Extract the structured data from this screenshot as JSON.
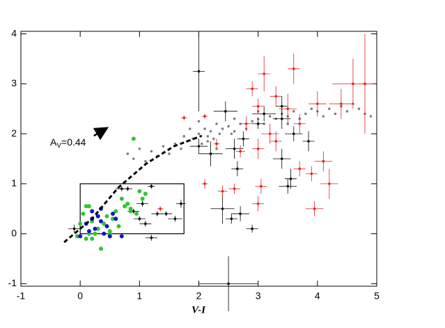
{
  "chart_data": {
    "type": "scatter",
    "x_label": "V-I",
    "xlim": [
      -1,
      5
    ],
    "ylim": [
      -1.05,
      4.05
    ],
    "xticks": [
      -1,
      0,
      1,
      2,
      3,
      4,
      5
    ],
    "yticks": [
      -1,
      0,
      1,
      2,
      3,
      4
    ],
    "annotation": {
      "text": "A",
      "sub": "V",
      "rest": "=0.44"
    },
    "arrow": {
      "x": [
        0.23,
        0.43
      ],
      "y": [
        1.96,
        2.1
      ],
      "color": "#000000"
    },
    "line": {
      "x": [
        -0.27,
        0.2,
        0.64,
        1.11,
        1.58,
        2.05
      ],
      "y": [
        -0.17,
        0.3,
        0.92,
        1.4,
        1.75,
        1.96
      ],
      "color": "#000000",
      "dashed": true
    },
    "box": {
      "x": [
        0,
        1.75
      ],
      "y": [
        0,
        1
      ],
      "color": "#000000"
    },
    "series": [
      {
        "color": "#808080",
        "marker": "dot",
        "x": [
          0.8,
          0.9,
          1.0,
          1.1,
          1.2,
          1.3,
          1.4,
          1.5,
          1.6,
          1.7,
          1.8,
          1.9,
          2.0,
          2.05,
          2.1,
          2.15,
          2.2,
          2.25,
          2.3,
          2.35,
          2.4,
          2.5,
          2.55,
          2.6,
          2.7,
          2.8,
          2.9,
          3.0,
          3.1,
          3.2,
          3.3,
          3.4,
          3.5,
          3.6,
          3.7,
          3.8,
          3.9,
          4.0,
          4.1,
          4.2,
          4.3,
          4.4,
          4.5,
          4.6,
          4.7,
          4.8,
          4.9,
          1.75,
          2.0,
          2.3,
          2.6,
          3.0,
          3.5,
          1.85,
          2.15
        ],
        "y": [
          1.6,
          1.5,
          1.7,
          1.45,
          1.65,
          1.55,
          1.75,
          1.6,
          1.8,
          1.7,
          1.85,
          1.9,
          2.0,
          1.8,
          2.1,
          1.95,
          2.05,
          1.9,
          2.2,
          2.0,
          2.1,
          2.15,
          2.0,
          2.3,
          2.2,
          2.1,
          2.25,
          2.3,
          2.2,
          2.35,
          2.3,
          2.4,
          2.35,
          2.45,
          2.3,
          2.4,
          2.5,
          2.45,
          2.35,
          2.5,
          2.4,
          2.55,
          2.45,
          2.6,
          2.5,
          2.4,
          2.35,
          1.95,
          2.25,
          1.7,
          2.05,
          2.45,
          2.2,
          2.1,
          1.85
        ]
      },
      {
        "color": "#000000",
        "marker": "err",
        "x": [
          -0.1,
          0.7,
          0.8,
          0.9,
          1.0,
          1.1,
          1.2,
          1.2,
          1.45,
          1.6,
          1.7,
          2.0,
          2.0,
          2.2,
          2.45,
          2.4,
          2.5,
          2.55,
          2.6,
          2.65,
          2.7,
          2.9,
          3.0,
          3.1,
          3.4,
          3.4,
          3.5,
          3.55,
          3.6,
          3.85,
          3.4,
          2.75,
          1.3,
          1.05
        ],
        "y": [
          0.1,
          0.9,
          0.9,
          0.45,
          0.3,
          0.2,
          0.95,
          -0.08,
          0.4,
          0.3,
          0.6,
          3.25,
          1.75,
          1.6,
          2.45,
          0.5,
          -1.0,
          0.3,
          1.7,
          1.3,
          0.4,
          0.1,
          2.2,
          2.4,
          2.3,
          1.5,
          0.95,
          1.1,
          2.0,
          1.85,
          2.55,
          1.9,
          0.4,
          0.6
        ],
        "xerr": [
          0.1,
          0.1,
          0.08,
          0.1,
          0.1,
          0.1,
          0.06,
          0.1,
          0.1,
          0.12,
          0.08,
          0.1,
          0.15,
          0.2,
          0.2,
          0.2,
          0.5,
          0.1,
          0.15,
          0.1,
          0.15,
          0.1,
          0.1,
          0.2,
          0.15,
          0.15,
          0.15,
          0.1,
          0.15,
          0.1,
          0.1,
          0.1,
          0.1,
          0.1
        ],
        "yerr": [
          0.08,
          0.05,
          0.05,
          0.05,
          0.05,
          0.06,
          0.05,
          0.06,
          0.05,
          0.06,
          0.08,
          0.8,
          0.15,
          0.25,
          0.2,
          0.3,
          0.55,
          0.1,
          0.2,
          0.15,
          0.15,
          0.08,
          0.1,
          0.15,
          0.2,
          0.2,
          0.15,
          0.2,
          0.15,
          0.2,
          0.2,
          0.15,
          0.05,
          0.06
        ]
      },
      {
        "color": "#e02020",
        "marker": "err",
        "x": [
          1.75,
          2.1,
          2.1,
          2.3,
          2.4,
          2.6,
          2.7,
          2.8,
          2.9,
          3.0,
          3.0,
          3.05,
          3.0,
          3.1,
          3.2,
          3.3,
          3.5,
          3.7,
          3.6,
          3.7,
          3.9,
          3.95,
          4.0,
          4.1,
          4.2,
          4.4,
          4.6,
          4.8,
          3.3,
          1.35
        ],
        "y": [
          2.32,
          2.35,
          1.0,
          1.8,
          0.85,
          0.9,
          1.65,
          2.2,
          2.9,
          2.55,
          1.7,
          0.95,
          0.6,
          3.2,
          2.0,
          2.75,
          2.5,
          2.2,
          3.3,
          1.3,
          1.2,
          0.5,
          2.6,
          1.45,
          1.0,
          2.6,
          3.0,
          3.0,
          1.85,
          0.5
        ],
        "xerr": [
          0.05,
          0.05,
          0.05,
          0.05,
          0.08,
          0.1,
          0.08,
          0.1,
          0.1,
          0.1,
          0.1,
          0.1,
          0.1,
          0.1,
          0.15,
          0.1,
          0.15,
          0.1,
          0.1,
          0.1,
          0.1,
          0.15,
          0.15,
          0.15,
          0.15,
          0.2,
          0.35,
          0.1,
          0.1,
          0.05
        ],
        "yerr": [
          0.05,
          0.05,
          0.1,
          0.1,
          0.12,
          0.1,
          0.12,
          0.15,
          0.15,
          0.15,
          0.2,
          0.15,
          0.15,
          0.35,
          0.2,
          0.2,
          0.3,
          0.2,
          0.3,
          0.15,
          0.15,
          0.15,
          0.25,
          0.2,
          0.3,
          0.3,
          0.5,
          1.0,
          0.2,
          0.05
        ]
      },
      {
        "color": "#33c433",
        "marker": "dot",
        "x": [
          0.0,
          -0.05,
          0.05,
          0.1,
          0.15,
          0.2,
          0.25,
          0.3,
          0.35,
          0.4,
          0.45,
          0.5,
          0.55,
          0.6,
          0.7,
          0.75,
          0.8,
          0.85,
          0.9,
          0.95,
          1.0,
          1.05,
          1.1,
          0.5,
          0.3,
          0.2,
          0.1,
          0.65,
          0.85,
          0.15
        ],
        "y": [
          0.2,
          -0.05,
          0.4,
          -0.1,
          0.0,
          0.25,
          0.0,
          0.1,
          -0.3,
          0.2,
          0.35,
          0.05,
          0.3,
          0.45,
          0.7,
          0.55,
          0.6,
          0.5,
          1.9,
          0.4,
          0.85,
          0.7,
          0.8,
          0.0,
          0.35,
          -0.1,
          0.55,
          0.15,
          0.45,
          0.55
        ]
      },
      {
        "color": "#1515c8",
        "marker": "dot",
        "x": [
          0.0,
          0.1,
          0.15,
          0.2,
          0.25,
          0.3,
          0.35,
          0.4,
          0.45,
          0.5,
          0.55,
          0.6,
          0.7,
          0.35,
          0.2
        ],
        "y": [
          -0.05,
          0.2,
          0.05,
          0.3,
          0.1,
          0.35,
          0.5,
          0.0,
          0.15,
          -0.05,
          0.4,
          0.3,
          -0.05,
          0.25,
          0.45
        ]
      }
    ]
  }
}
